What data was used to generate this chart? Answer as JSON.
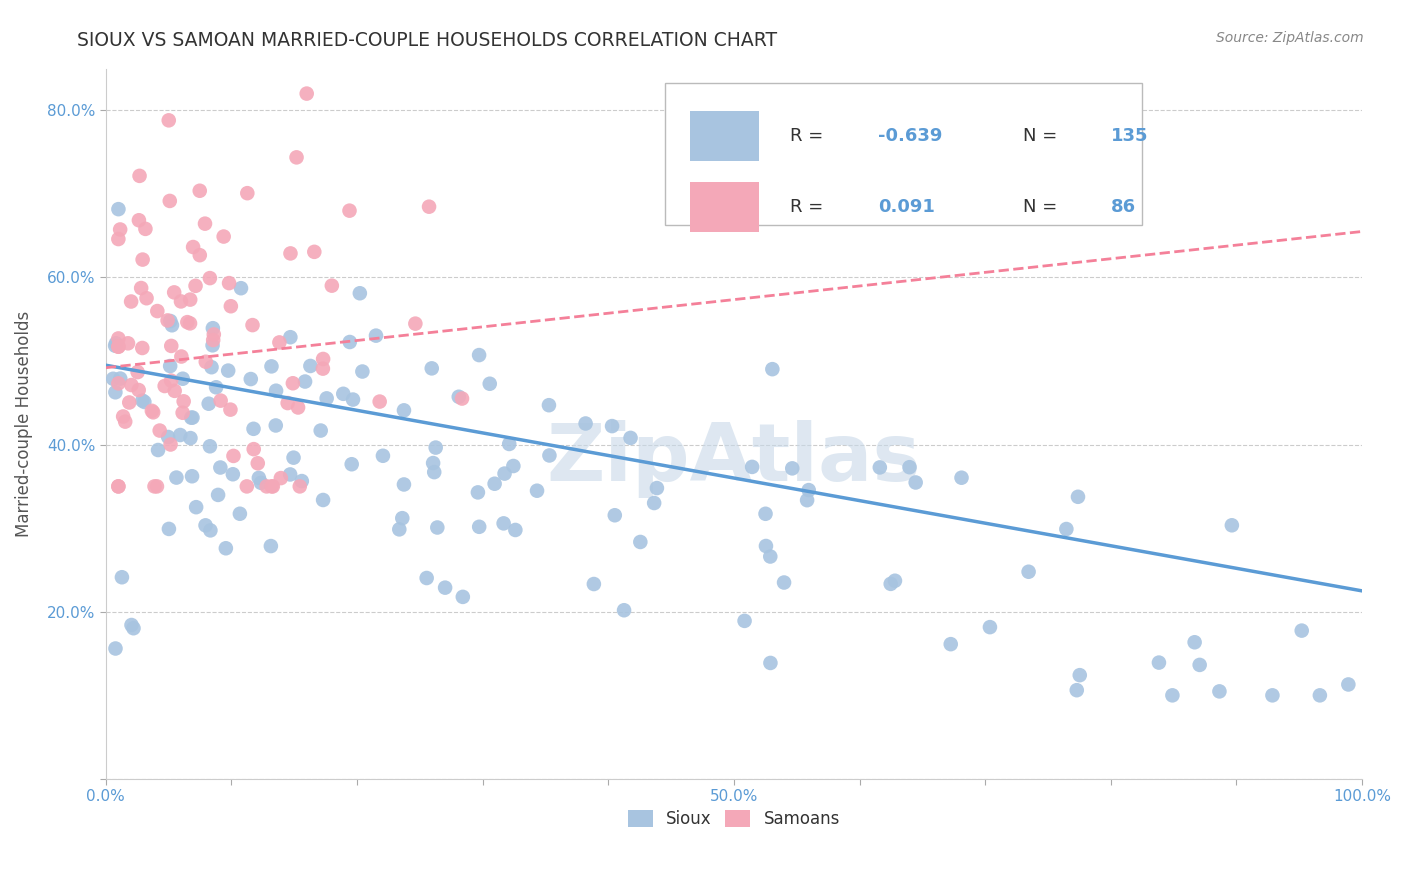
{
  "title": "SIOUX VS SAMOAN MARRIED-COUPLE HOUSEHOLDS CORRELATION CHART",
  "source_text": "Source: ZipAtlas.com",
  "ylabel": "Married-couple Households",
  "xlim": [
    0.0,
    1.0
  ],
  "ylim": [
    0.0,
    0.85
  ],
  "sioux_color": "#a8c4e0",
  "samoan_color": "#f4a8b8",
  "sioux_line_color": "#5b9bd5",
  "samoan_line_color": "#f48099",
  "grid_color": "#cccccc",
  "background_color": "#ffffff",
  "watermark": "ZipAtlas",
  "watermark_color": "#c8d8e8",
  "sioux_line_y_start": 0.495,
  "sioux_line_y_end": 0.225,
  "samoan_line_y_start": 0.492,
  "samoan_line_y_end": 0.655,
  "title_color": "#333333",
  "source_color": "#888888",
  "tick_color": "#5b9bd5",
  "ylabel_color": "#555555"
}
